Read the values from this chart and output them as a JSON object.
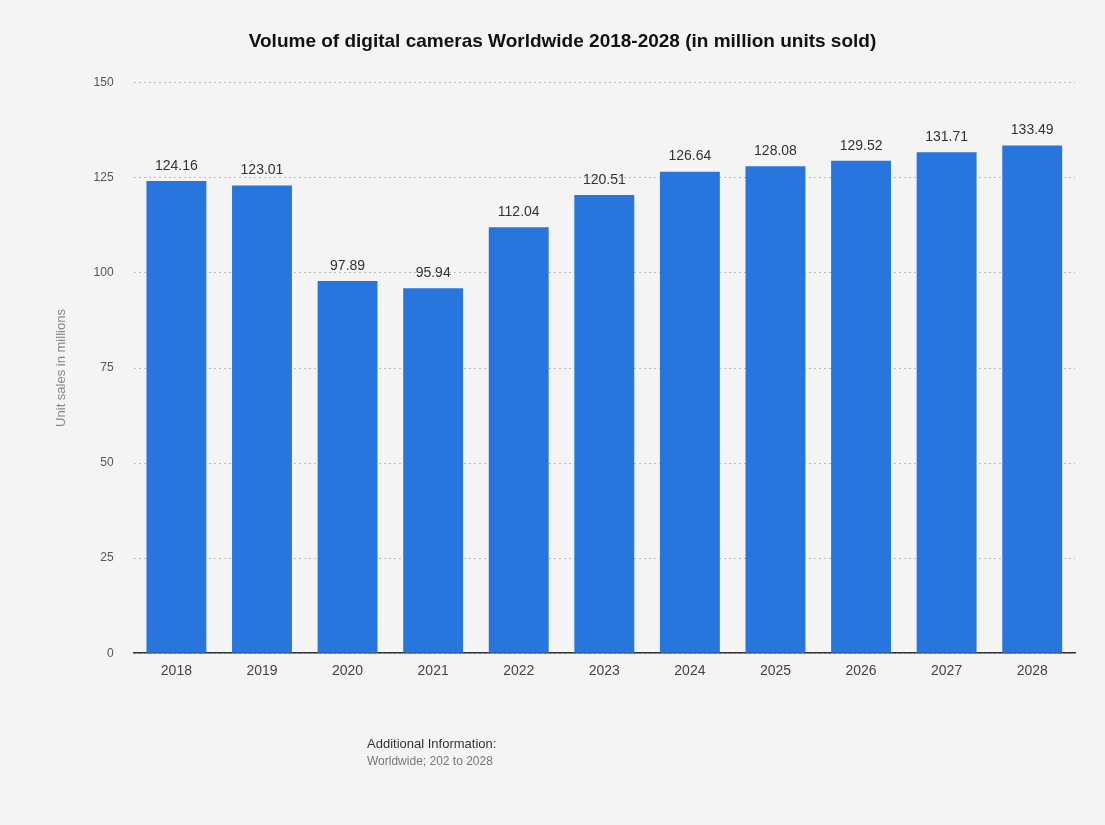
{
  "chart_data": {
    "type": "bar",
    "title": "Volume of digital cameras Worldwide 2018-2028 (in million units sold)",
    "ylabel": "Unit sales in millions",
    "categories": [
      "2018",
      "2019",
      "2020",
      "2021",
      "2022",
      "2023",
      "2024",
      "2025",
      "2026",
      "2027",
      "2028"
    ],
    "values": [
      124.16,
      123.01,
      97.89,
      95.94,
      112.04,
      120.51,
      126.64,
      128.08,
      129.52,
      131.71,
      133.49
    ],
    "color": "#2876dd",
    "ylim": [
      0,
      150
    ],
    "yticks": [
      0,
      25,
      50,
      75,
      100,
      125,
      150
    ],
    "grid": "y",
    "data_labels": true,
    "annotations": [
      "Additional Information:",
      "Worldwide; 202 to 2028"
    ]
  }
}
